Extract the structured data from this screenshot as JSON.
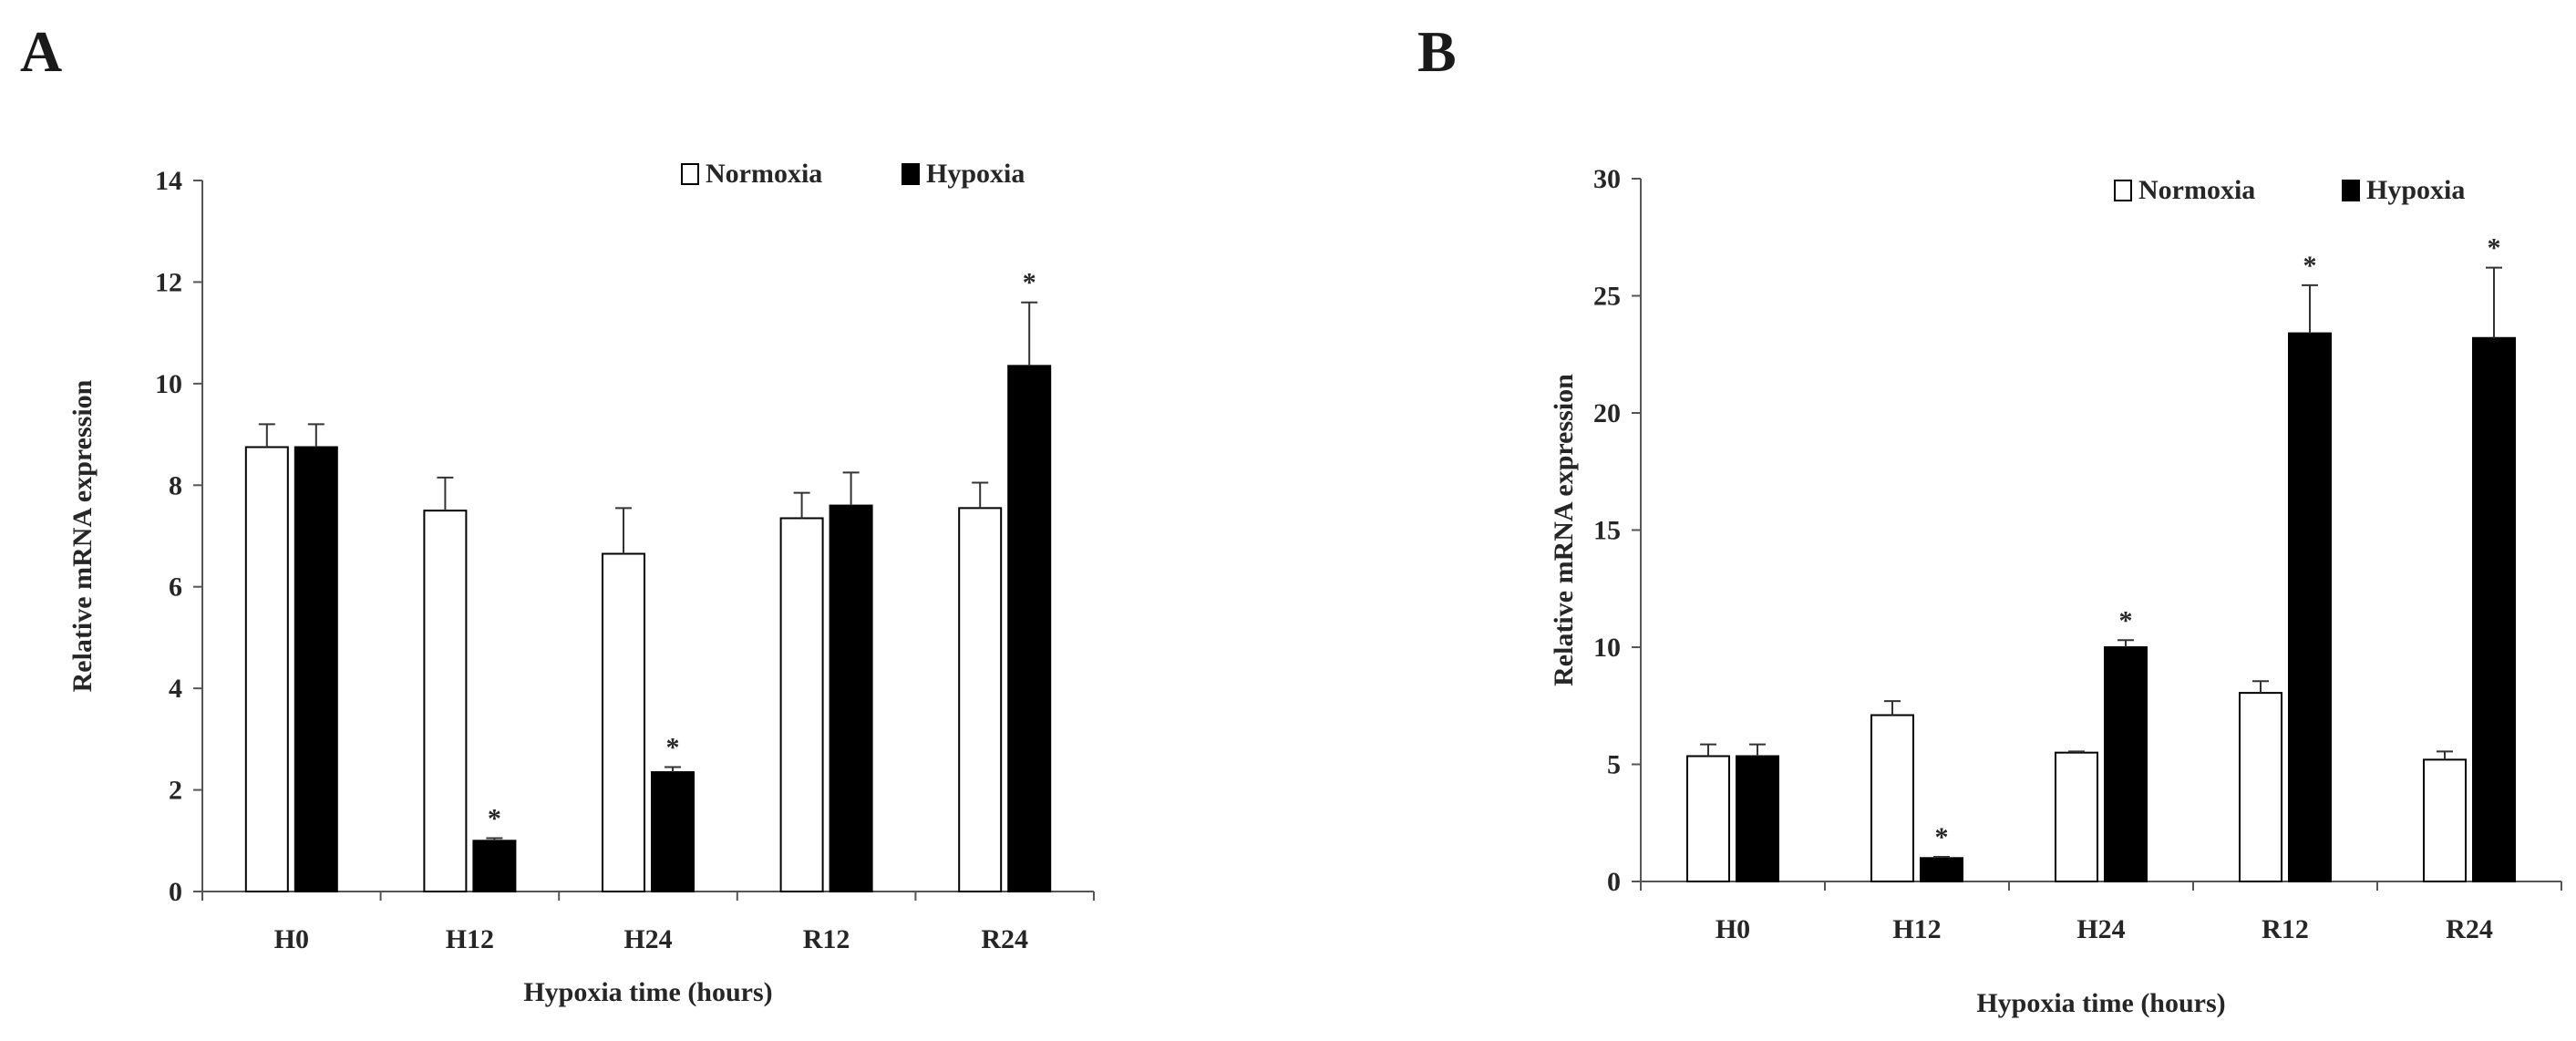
{
  "chart_data": [
    {
      "panel": "A",
      "type": "bar",
      "xlabel": "Hypoxia time (hours)",
      "ylabel": "Relative mRNA expression",
      "ylim": [
        0,
        14
      ],
      "yticks": [
        0,
        2,
        4,
        6,
        8,
        10,
        12,
        14
      ],
      "categories": [
        "H0",
        "H12",
        "H24",
        "R12",
        "R24"
      ],
      "legend_position": "top-right",
      "grid": false,
      "series": [
        {
          "name": "Normoxia",
          "fill": "#ffffff",
          "values": [
            8.75,
            7.5,
            6.65,
            7.35,
            7.55
          ],
          "errors": [
            0.45,
            0.65,
            0.9,
            0.5,
            0.5
          ],
          "significant": [
            false,
            false,
            false,
            false,
            false
          ]
        },
        {
          "name": "Hypoxia",
          "fill": "#000000",
          "values": [
            8.75,
            1.0,
            2.35,
            7.6,
            10.35
          ],
          "errors": [
            0.45,
            0.05,
            0.1,
            0.65,
            1.25
          ],
          "significant": [
            false,
            true,
            true,
            false,
            true
          ]
        }
      ],
      "significance_marker": "*"
    },
    {
      "panel": "B",
      "type": "bar",
      "xlabel": "Hypoxia time (hours)",
      "ylabel": "Relative mRNA expression",
      "ylim": [
        0,
        30
      ],
      "yticks": [
        0,
        5,
        10,
        15,
        20,
        25,
        30
      ],
      "categories": [
        "H0",
        "H12",
        "H24",
        "R12",
        "R24"
      ],
      "legend_position": "top-right",
      "grid": false,
      "series": [
        {
          "name": "Normoxia",
          "fill": "#ffffff",
          "values": [
            5.35,
            7.1,
            5.5,
            8.05,
            5.2
          ],
          "errors": [
            0.5,
            0.6,
            0.05,
            0.5,
            0.35
          ],
          "significant": [
            false,
            false,
            false,
            false,
            false
          ]
        },
        {
          "name": "Hypoxia",
          "fill": "#000000",
          "values": [
            5.35,
            1.0,
            10.0,
            23.4,
            23.2
          ],
          "errors": [
            0.5,
            0.05,
            0.3,
            2.05,
            3.0
          ],
          "significant": [
            false,
            true,
            true,
            true,
            true
          ]
        }
      ],
      "significance_marker": "*"
    }
  ]
}
